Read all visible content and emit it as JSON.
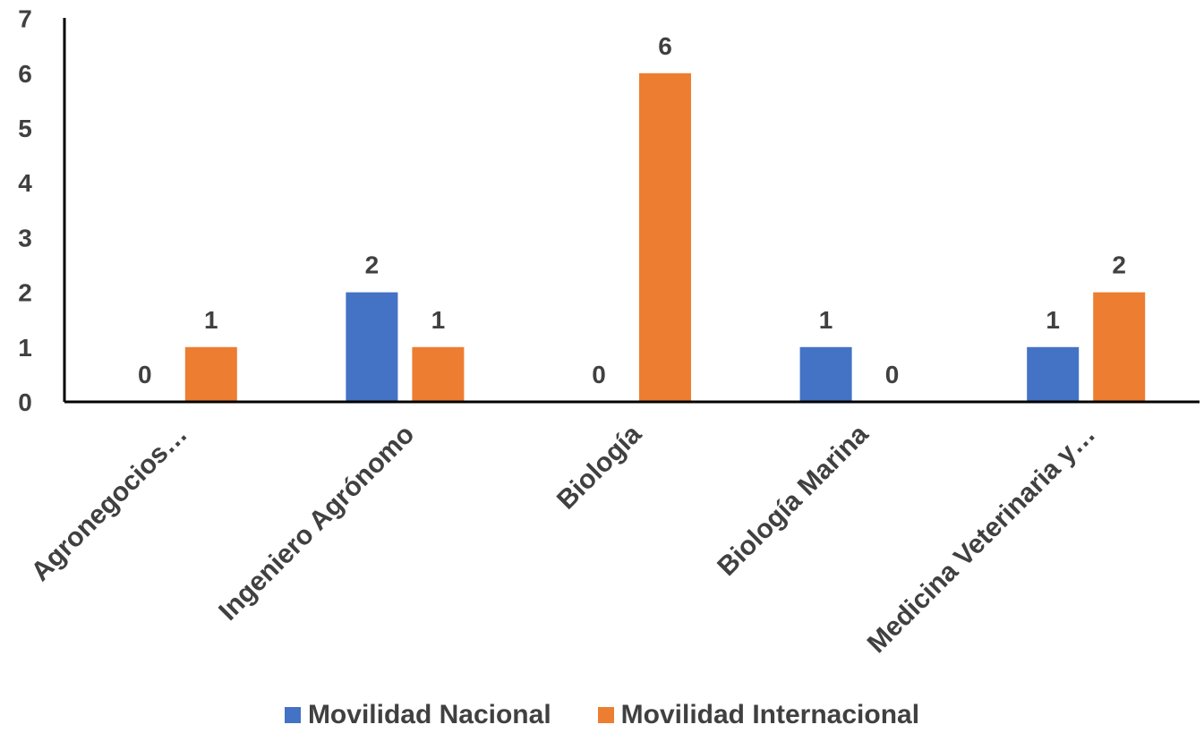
{
  "chart_data": {
    "type": "bar",
    "categories": [
      "Agronegocios…",
      "Ingeniero Agrónomo",
      "Biología",
      "Biología Marina",
      "Medicina Veterinaria y…"
    ],
    "series": [
      {
        "name": "Movilidad Nacional",
        "values": [
          0,
          2,
          0,
          1,
          1
        ],
        "color": "#4472C4"
      },
      {
        "name": "Movilidad Internacional",
        "values": [
          1,
          1,
          6,
          0,
          2
        ],
        "color": "#ED7D31"
      }
    ],
    "y_ticks": [
      "0",
      "1",
      "2",
      "3",
      "4",
      "5",
      "6",
      "7"
    ],
    "data_labels": true,
    "legend_position": "bottom",
    "grid": false
  }
}
